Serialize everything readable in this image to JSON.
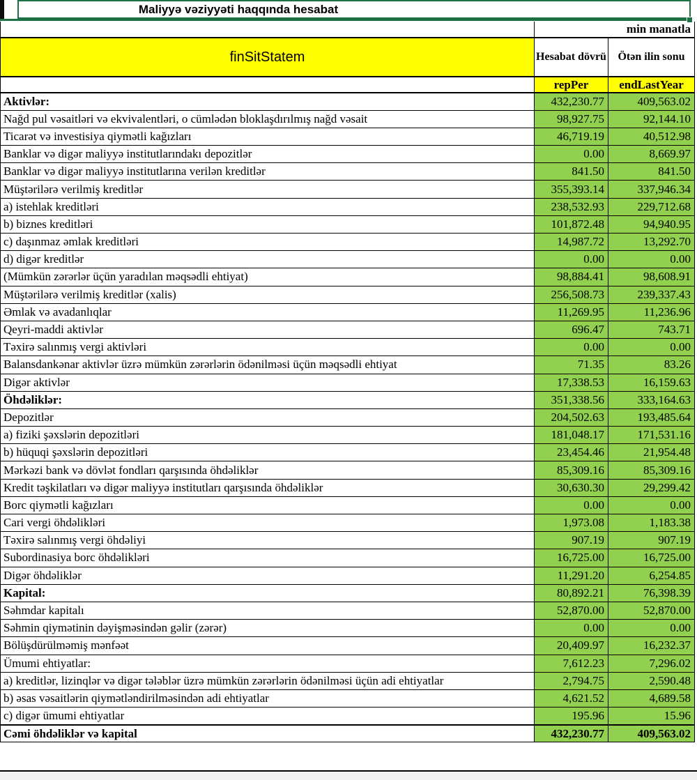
{
  "title": "Maliyyə vəziyyəti haqqında hesabat",
  "unit_note": "min manatla",
  "colors": {
    "selection_green": "#1e7145",
    "header_yellow": "#ffff00",
    "value_green": "#92d050",
    "grid_black": "#000000",
    "outside_gray": "#f1f1f1"
  },
  "header": {
    "form_code": "finSitStatem",
    "report_period_label": "Hesabat dövrü",
    "end_last_year_label": "Ötən ilin sonu",
    "report_period_code": "repPer",
    "end_last_year_code": "endLastYear"
  },
  "rows": [
    {
      "label": "Aktivlər:",
      "rep": "432,230.77",
      "end": "409,563.02",
      "style": "section"
    },
    {
      "label": "Nağd pul vəsaitləri və  ekvivalentləri, o cümlədən bloklaşdırılmış nağd vəsait",
      "rep": "98,927.75",
      "end": "92,144.10",
      "style": "normal"
    },
    {
      "label": "Ticarət və investisiya qiymətli kağızları",
      "rep": "46,719.19",
      "end": "40,512.98",
      "style": "normal"
    },
    {
      "label": "Banklar və digər maliyyə institutlarındakı depozitlər",
      "rep": "0.00",
      "end": "8,669.97",
      "style": "normal"
    },
    {
      "label": "Banklar və digər maliyyə institutlarına verilən kreditlər",
      "rep": "841.50",
      "end": "841.50",
      "style": "normal"
    },
    {
      "label": "Müştərilərə verilmiş kreditlər",
      "rep": "355,393.14",
      "end": "337,946.34",
      "style": "normal"
    },
    {
      "label": "a) istehlak kreditləri",
      "rep": "238,532.93",
      "end": "229,712.68",
      "style": "normal"
    },
    {
      "label": "b) biznes kreditləri",
      "rep": "101,872.48",
      "end": "94,940.95",
      "style": "normal"
    },
    {
      "label": "c) daşınmaz əmlak kreditləri",
      "rep": "14,987.72",
      "end": "13,292.70",
      "style": "normal"
    },
    {
      "label": "d) digər kreditlər",
      "rep": "0.00",
      "end": "0.00",
      "style": "normal"
    },
    {
      "label": "(Mümkün zərərlər üçün yaradılan məqsədli ehtiyat)",
      "rep": "98,884.41",
      "end": "98,608.91",
      "style": "normal"
    },
    {
      "label": "Müştərilərə verilmiş kreditlər (xalis)",
      "rep": "256,508.73",
      "end": "239,337.43",
      "style": "normal"
    },
    {
      "label": "Əmlak və avadanlıqlar",
      "rep": "11,269.95",
      "end": "11,236.96",
      "style": "normal"
    },
    {
      "label": "Qeyri-maddi aktivlər",
      "rep": "696.47",
      "end": "743.71",
      "style": "normal"
    },
    {
      "label": "Təxirə salınmış vergi aktivləri",
      "rep": "0.00",
      "end": "0.00",
      "style": "normal"
    },
    {
      "label": "Balansdankənar aktivlər üzrə mümkün zərərlərin ödənilməsi üçün məqsədli ehtiyat",
      "rep": "71.35",
      "end": "83.26",
      "style": "normal"
    },
    {
      "label": "Digər aktivlər",
      "rep": "17,338.53",
      "end": "16,159.63",
      "style": "normal"
    },
    {
      "label": "Öhdəliklər:",
      "rep": "351,338.56",
      "end": "333,164.63",
      "style": "section"
    },
    {
      "label": "Depozitlər",
      "rep": "204,502.63",
      "end": "193,485.64",
      "style": "normal"
    },
    {
      "label": "a) fiziki şəxslərin depozitləri",
      "rep": "181,048.17",
      "end": "171,531.16",
      "style": "normal"
    },
    {
      "label": "b) hüquqi şəxslərin depozitləri",
      "rep": "23,454.46",
      "end": "21,954.48",
      "style": "normal"
    },
    {
      "label": "Mərkəzi bank və dövlət fondları qarşısında öhdəliklər",
      "rep": "85,309.16",
      "end": "85,309.16",
      "style": "normal"
    },
    {
      "label": "Kredit təşkilatları və digər maliyyə institutları qarşısında öhdəliklər",
      "rep": "30,630.30",
      "end": "29,299.42",
      "style": "normal"
    },
    {
      "label": "Borc qiymətli kağızları",
      "rep": "0.00",
      "end": "0.00",
      "style": "normal"
    },
    {
      "label": "Cari vergi öhdəlikləri",
      "rep": "1,973.08",
      "end": "1,183.38",
      "style": "normal"
    },
    {
      "label": "Təxirə salınmış vergi öhdəliyi",
      "rep": "907.19",
      "end": "907.19",
      "style": "normal"
    },
    {
      "label": "Subordinasiya borc öhdəlikləri",
      "rep": "16,725.00",
      "end": "16,725.00",
      "style": "normal"
    },
    {
      "label": "Digər öhdəliklər",
      "rep": "11,291.20",
      "end": "6,254.85",
      "style": "normal"
    },
    {
      "label": "Kapital:",
      "rep": "80,892.21",
      "end": "76,398.39",
      "style": "section"
    },
    {
      "label": "Səhmdar kapitalı",
      "rep": "52,870.00",
      "end": "52,870.00",
      "style": "normal"
    },
    {
      "label": "Səhmin qiymətinin dəyişməsindən gəlir (zərər)",
      "rep": "0.00",
      "end": "0.00",
      "style": "normal"
    },
    {
      "label": "Bölüşdürülməmiş mənfəət",
      "rep": "20,409.97",
      "end": "16,232.37",
      "style": "normal"
    },
    {
      "label": "Ümumi ehtiyatlar:",
      "rep": "7,612.23",
      "end": "7,296.02",
      "style": "normal"
    },
    {
      "label": "a) kreditlər, lizinqlər və digər tələblər üzrə mümkün zərərlərin ödənilməsi üçün adi ehtiyatlar",
      "rep": "2,794.75",
      "end": "2,590.48",
      "style": "normal"
    },
    {
      "label": "b) əsas vəsaitlərin qiymətləndirilməsindən adi ehtiyatlar",
      "rep": "4,621.52",
      "end": "4,689.58",
      "style": "normal"
    },
    {
      "label": "c) digər ümumi ehtiyatlar",
      "rep": "195.96",
      "end": "15.96",
      "style": "normal"
    },
    {
      "label": "Cəmi öhdəliklər və kapital",
      "rep": "432,230.77",
      "end": "409,563.02",
      "style": "total"
    }
  ]
}
